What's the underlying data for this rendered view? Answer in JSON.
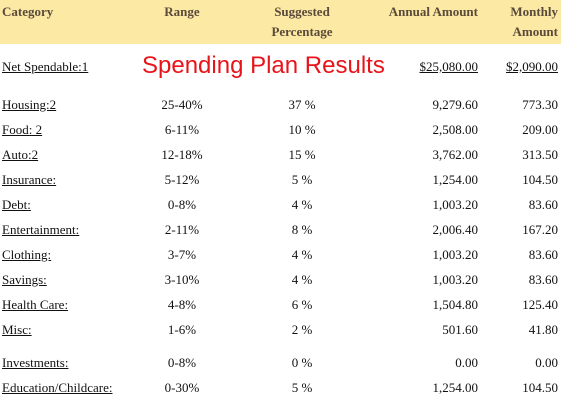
{
  "header": {
    "columns": [
      [
        "Category"
      ],
      [
        "Range"
      ],
      [
        "Suggested",
        "Percentage"
      ],
      [
        "Annual Amount"
      ],
      [
        "Monthly",
        "Amount"
      ]
    ]
  },
  "net_spendable": {
    "label": "Net Spendable:1",
    "title": "Spending Plan Results",
    "annual": "$25,080.00",
    "monthly": "$2,090.00"
  },
  "table": {
    "rows": [
      [
        "Housing:2",
        "25-40%",
        "37 %",
        "9,279.60",
        "773.30"
      ],
      [
        "Food: 2",
        "6-11%",
        "10 %",
        "2,508.00",
        "209.00"
      ],
      [
        "Auto:2",
        "12-18%",
        "15 %",
        "3,762.00",
        "313.50"
      ],
      [
        "Insurance:",
        "5-12%",
        "5 %",
        "1,254.00",
        "104.50"
      ],
      [
        "Debt:",
        "0-8%",
        "4 %",
        "1,003.20",
        "83.60"
      ],
      [
        "Entertainment:",
        "2-11%",
        "8 %",
        "2,006.40",
        "167.20"
      ],
      [
        "Clothing:",
        "3-7%",
        "4 %",
        "1,003.20",
        "83.60"
      ],
      [
        "Savings:",
        "3-10%",
        "4 %",
        "1,003.20",
        "83.60"
      ],
      [
        "Health Care:",
        "4-8%",
        "6 %",
        "1,504.80",
        "125.40"
      ],
      [
        "Misc:",
        "1-6%",
        "2 %",
        "501.60",
        "41.80"
      ],
      [
        "Investments:",
        "0-8%",
        "0 %",
        "0.00",
        "0.00"
      ],
      [
        "Education/Childcare:",
        "0-30%",
        "5 %",
        "1,254.00",
        "104.50"
      ]
    ]
  }
}
